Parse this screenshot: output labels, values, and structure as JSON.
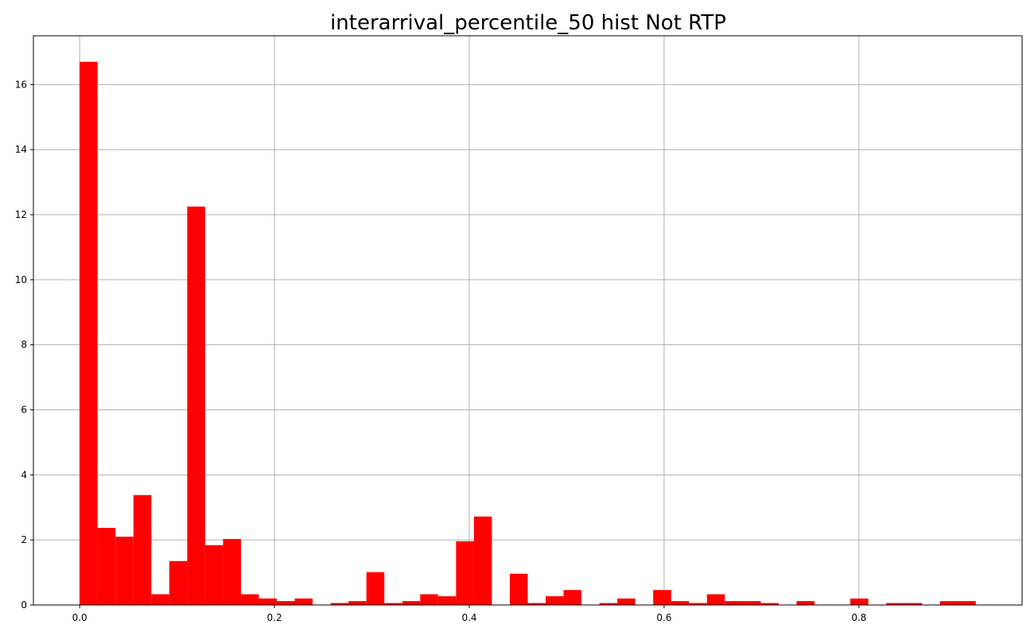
{
  "chart_data": {
    "type": "bar",
    "title": "interarrival_percentile_50 hist Not RTP",
    "xlabel": "",
    "ylabel": "",
    "xlim": [
      -0.0475,
      0.9675
    ],
    "ylim": [
      0,
      17.5
    ],
    "grid": true,
    "bar_color": "#ff0000",
    "bin_width": 0.0184,
    "bin_start": 0.0,
    "values": [
      16.7,
      2.37,
      2.1,
      3.38,
      0.33,
      1.35,
      12.25,
      1.84,
      2.03,
      0.33,
      0.2,
      0.12,
      0.2,
      0,
      0.06,
      0.12,
      1.01,
      0.06,
      0.12,
      0.33,
      0.27,
      1.96,
      2.72,
      0,
      0.96,
      0.06,
      0.27,
      0.46,
      0,
      0.06,
      0.2,
      0,
      0.46,
      0.12,
      0.06,
      0.33,
      0.12,
      0.12,
      0.06,
      0,
      0.12,
      0,
      0,
      0.2,
      0,
      0.06,
      0.06,
      0,
      0.12,
      0.12
    ],
    "x_ticks": [
      "0.0",
      "0.2",
      "0.4",
      "0.6",
      "0.8"
    ],
    "x_tick_values": [
      0.0,
      0.2,
      0.4,
      0.6,
      0.8
    ],
    "y_ticks": [
      "0",
      "2",
      "4",
      "6",
      "8",
      "10",
      "12",
      "14",
      "16"
    ],
    "y_tick_values": [
      0,
      2,
      4,
      6,
      8,
      10,
      12,
      14,
      16
    ]
  }
}
